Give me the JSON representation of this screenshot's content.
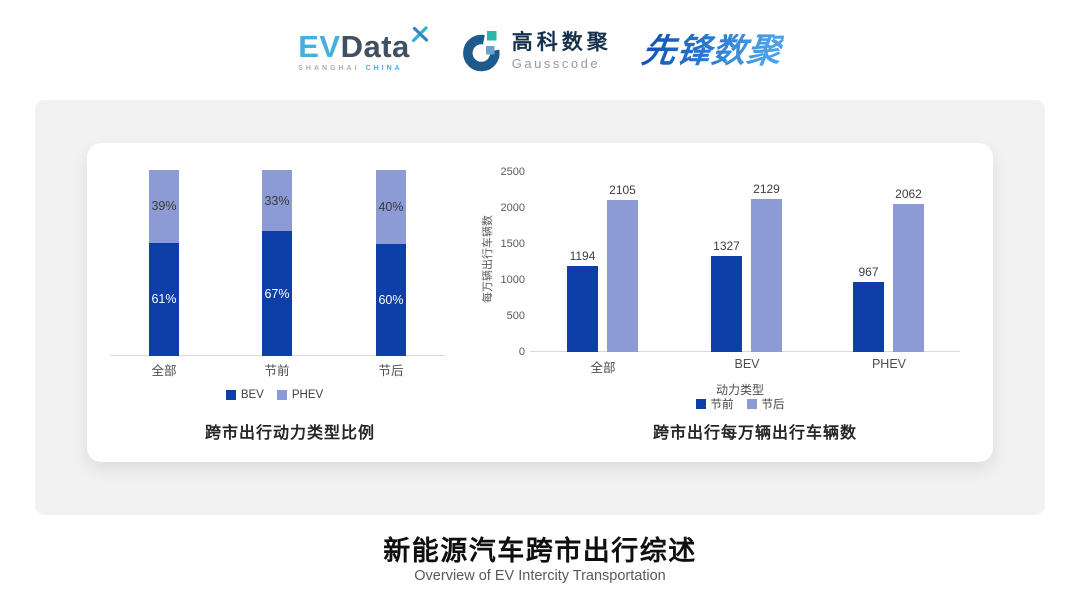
{
  "header": {
    "evdata": {
      "ev": "EV",
      "data": "Data",
      "shanghai": "SHANGHAI",
      "china": "CHINA"
    },
    "gausscode": {
      "cn": "高科数聚",
      "en": "Gausscode"
    },
    "pioneer": "先锋数聚"
  },
  "colors": {
    "bev_dark_blue": "#0e3fa9",
    "phev_light_blue": "#8c9bd3",
    "evdata_blue": "#45b0e0",
    "evdata_dark": "#3f5063",
    "gauss_navy": "#16324f",
    "pioneer_blue": "#2b7bd0",
    "card_gray": "#f1f1f2",
    "axis_gray": "#d9d9d9"
  },
  "chart_data": [
    {
      "type": "bar",
      "variant": "stacked-percent",
      "title": "跨市出行动力类型比例",
      "categories": [
        "全部",
        "节前",
        "节后"
      ],
      "series": [
        {
          "name": "BEV",
          "color": "#0e3fa9",
          "values": [
            61,
            67,
            60
          ],
          "labels": [
            "61%",
            "67%",
            "60%"
          ]
        },
        {
          "name": "PHEV",
          "color": "#8c9bd3",
          "values": [
            39,
            33,
            40
          ],
          "labels": [
            "39%",
            "33%",
            "40%"
          ]
        }
      ],
      "ylim": [
        0,
        100
      ],
      "grid": false,
      "legend_position": "bottom"
    },
    {
      "type": "bar",
      "variant": "grouped",
      "title": "跨市出行每万辆出行车辆数",
      "categories": [
        "全部",
        "BEV",
        "PHEV"
      ],
      "xlabel": "动力类型",
      "ylabel": "每万辆出行车辆数",
      "series": [
        {
          "name": "节前",
          "color": "#0e3fa9",
          "values": [
            1194,
            1327,
            967
          ]
        },
        {
          "name": "节后",
          "color": "#8c9bd3",
          "values": [
            2105,
            2129,
            2062
          ]
        }
      ],
      "y_ticks": [
        0,
        500,
        1000,
        1500,
        2000,
        2500
      ],
      "ylim": [
        0,
        2500
      ],
      "grid": false,
      "legend_position": "bottom"
    }
  ],
  "footer": {
    "title": "新能源汽车跨市出行综述",
    "subtitle": "Overview of EV Intercity Transportation"
  }
}
